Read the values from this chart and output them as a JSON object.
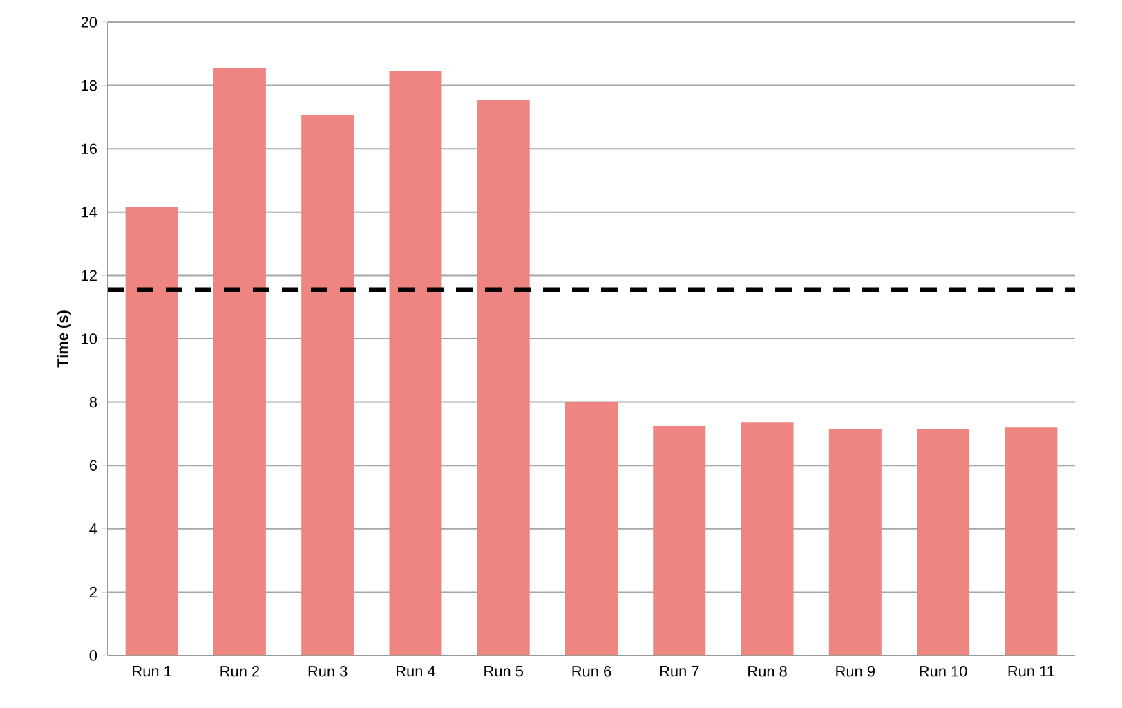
{
  "chart_data": {
    "type": "bar",
    "ylabel": "**Time (s)**",
    "categories": [
      "Run 1",
      "Run 2",
      "Run 3",
      "Run 4",
      "Run 5",
      "Run 6",
      "Run 7",
      "Run 8",
      "Run 9",
      "Run 10",
      "Run 11"
    ],
    "values": [
      14.15,
      18.55,
      17.05,
      18.45,
      17.55,
      8.0,
      7.25,
      7.35,
      7.15,
      7.15,
      7.2
    ],
    "color": "#ef8580",
    "ylim": [
      0,
      20
    ],
    "yticks": [
      0,
      2,
      4,
      6,
      8,
      10,
      12,
      14,
      16,
      18,
      20
    ],
    "grid": "y",
    "ref_lines": [
      {
        "axis": "y",
        "value": 11.55,
        "color": "#000000",
        "line_style": "dashed"
      }
    ]
  }
}
